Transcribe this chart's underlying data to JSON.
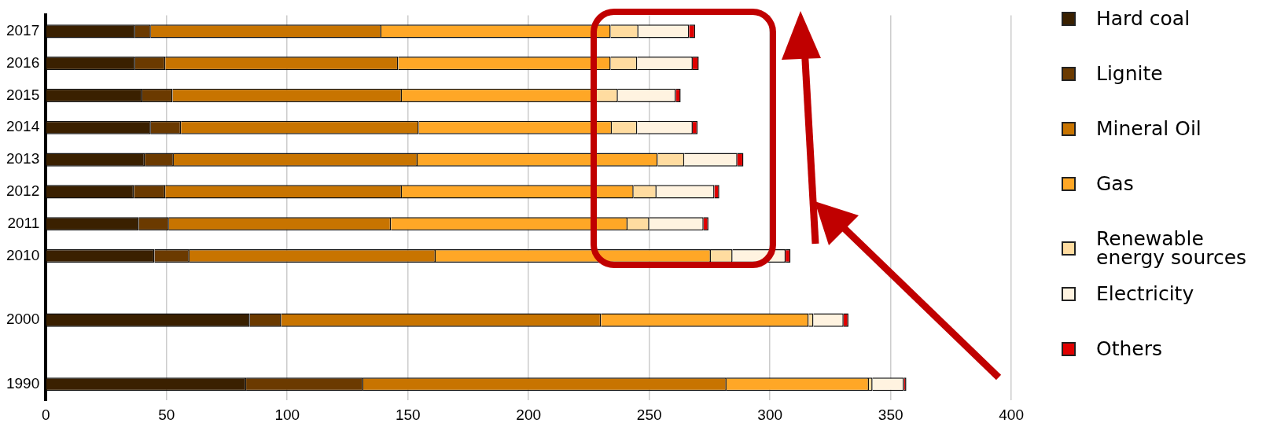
{
  "chart_data": {
    "type": "bar",
    "orientation": "horizontal",
    "stacked": true,
    "categories": [
      "2017",
      "2016",
      "2015",
      "2014",
      "2013",
      "2012",
      "2011",
      "2010",
      null,
      "2000",
      null,
      "1990"
    ],
    "series": [
      {
        "name": "Hard coal",
        "color": "#3a2000",
        "values": [
          37,
          37,
          40,
          43.5,
          41,
          36.5,
          38.5,
          45,
          null,
          84.5,
          null,
          83
        ]
      },
      {
        "name": "Lignite",
        "color": "#6b3a00",
        "values": [
          6.5,
          12.5,
          12.5,
          12.5,
          12,
          13,
          12.5,
          14.5,
          null,
          13,
          null,
          48.5
        ]
      },
      {
        "name": "Mineral Oil",
        "color": "#c87400",
        "values": [
          95.5,
          96.5,
          95,
          98.5,
          101,
          98,
          92,
          102,
          null,
          132.5,
          null,
          150.5
        ]
      },
      {
        "name": "Gas",
        "color": "#ffa726",
        "values": [
          95,
          88,
          79,
          80,
          99.5,
          96,
          98,
          114,
          null,
          86,
          null,
          59
        ]
      },
      {
        "name": "Renewable energy sources",
        "color": "#ffdca0",
        "values": [
          11.5,
          11,
          10.5,
          10.5,
          11,
          9.5,
          9,
          9,
          null,
          2,
          null,
          1.5
        ]
      },
      {
        "name": "Electricity",
        "color": "#fff3e0",
        "values": [
          21,
          23,
          24,
          23,
          22,
          24,
          22.5,
          22,
          null,
          12.5,
          null,
          13
        ]
      },
      {
        "name": "Others",
        "color": "#e00000",
        "values": [
          2.5,
          2.5,
          2,
          2,
          2.5,
          2,
          2,
          2,
          null,
          2,
          null,
          1
        ]
      }
    ],
    "xlim": [
      0,
      400
    ],
    "xticks": [
      0,
      50,
      100,
      150,
      200,
      250,
      300,
      350,
      400
    ],
    "grid": "x",
    "legend": "right"
  }
}
